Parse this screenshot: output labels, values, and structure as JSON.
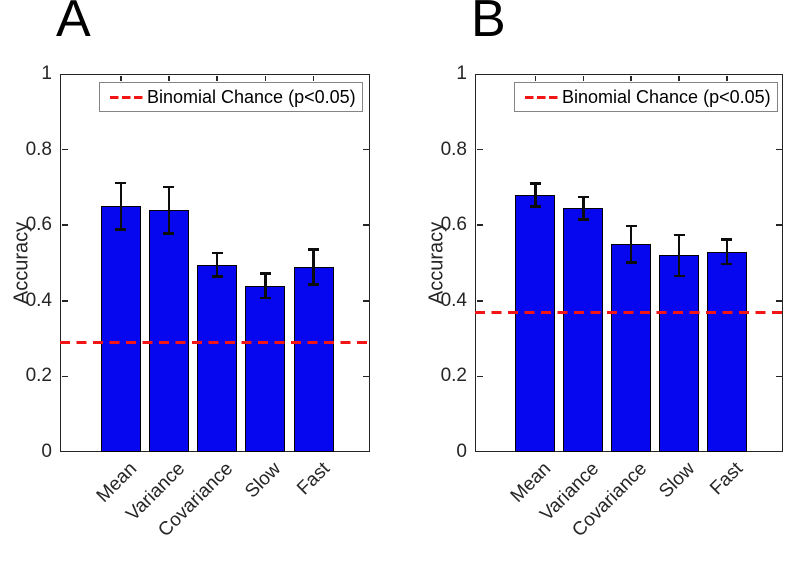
{
  "figure": {
    "background": "#ffffff",
    "bar_color": "#0606ef",
    "bar_edge_color": "#000000",
    "error_color": "#0d0d0d",
    "chance_color": "#f31515",
    "axis_color": "#262626",
    "tick_label_color": "#262626",
    "legend_border_color": "#848484"
  },
  "chart_data": [
    {
      "type": "bar",
      "panel_label": "A",
      "title": "",
      "xlabel": "",
      "ylabel": "Accuracy",
      "ylim": [
        0,
        1
      ],
      "yticks": [
        0,
        0.2,
        0.4,
        0.6,
        0.8,
        1
      ],
      "ytick_labels": [
        "0",
        "0.2",
        "0.4",
        "0.6",
        "0.8",
        "1"
      ],
      "categories": [
        "Mean",
        "Variance",
        "Covariance",
        "Slow",
        "Fast"
      ],
      "values": [
        0.65,
        0.64,
        0.495,
        0.44,
        0.49
      ],
      "errors": [
        0.062,
        0.062,
        0.032,
        0.033,
        0.047
      ],
      "chance_line": 0.29,
      "legend_label": "Binomial Chance (p<0.05)",
      "legend_position": "upper-center",
      "grid": false
    },
    {
      "type": "bar",
      "panel_label": "B",
      "title": "",
      "xlabel": "",
      "ylabel": "Accuracy",
      "ylim": [
        0,
        1
      ],
      "yticks": [
        0,
        0.2,
        0.4,
        0.6,
        0.8,
        1
      ],
      "ytick_labels": [
        "0",
        "0.2",
        "0.4",
        "0.6",
        "0.8",
        "1"
      ],
      "categories": [
        "Mean",
        "Variance",
        "Covariance",
        "Slow",
        "Fast"
      ],
      "values": [
        0.68,
        0.645,
        0.55,
        0.52,
        0.53
      ],
      "errors": [
        0.031,
        0.03,
        0.049,
        0.055,
        0.033
      ],
      "chance_line": 0.37,
      "legend_label": "Binomial Chance (p<0.05)",
      "legend_position": "upper-center",
      "grid": false
    }
  ]
}
